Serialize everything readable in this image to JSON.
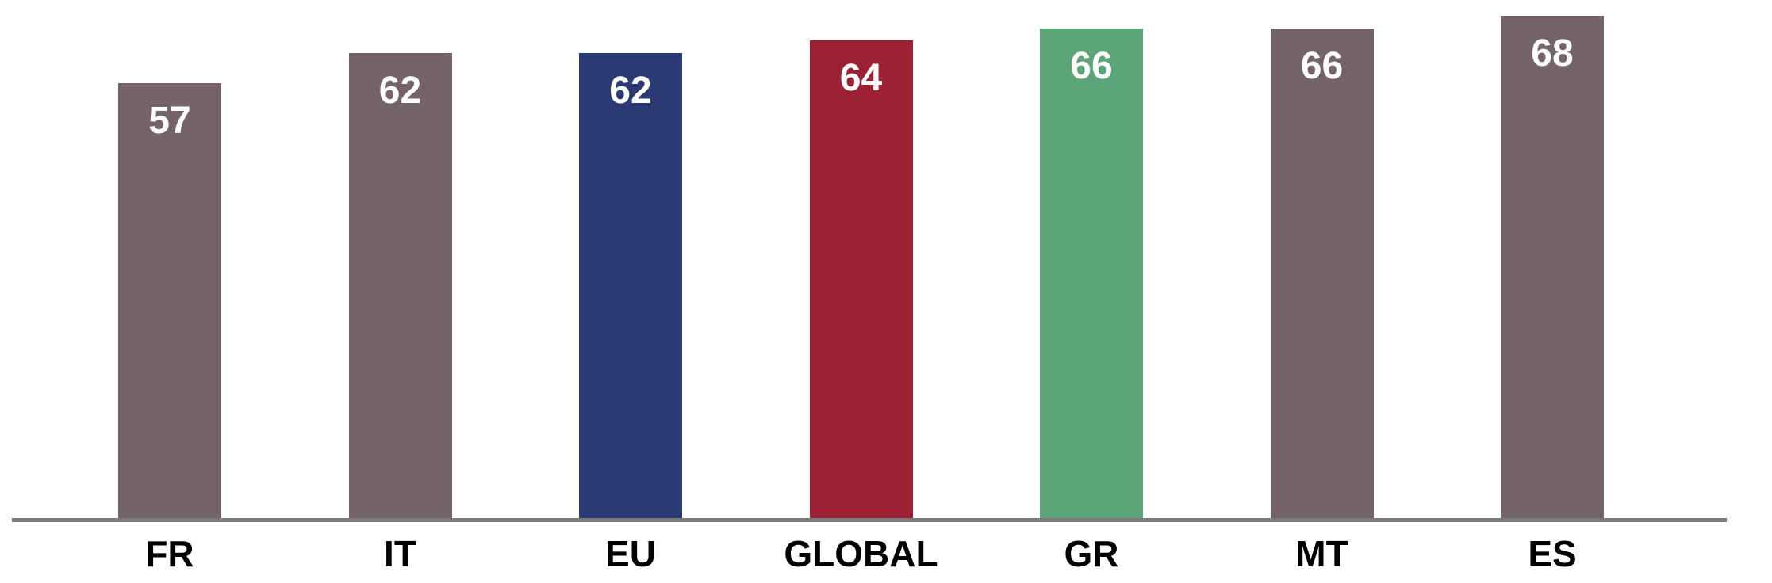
{
  "chart_data": {
    "type": "bar",
    "categories": [
      "FR",
      "IT",
      "EU",
      "GLOBAL",
      "GR",
      "MT",
      "ES"
    ],
    "values": [
      57,
      62,
      62,
      64,
      66,
      66,
      68
    ],
    "bar_colors": [
      "#746468",
      "#746468",
      "#2b3a73",
      "#9d2135",
      "#5ca578",
      "#746468",
      "#746468"
    ],
    "value_labels": [
      "57",
      "62",
      "62",
      "64",
      "66",
      "66",
      "68"
    ],
    "value_label_color": "#ffffff",
    "category_label_color": "#000000",
    "axis_line_color": "#7b7b7b",
    "background_color": "#ffffff",
    "title": "",
    "xlabel": "",
    "ylabel": "",
    "legend": "none",
    "grid": "off",
    "value_labels_position": "inside-top"
  }
}
